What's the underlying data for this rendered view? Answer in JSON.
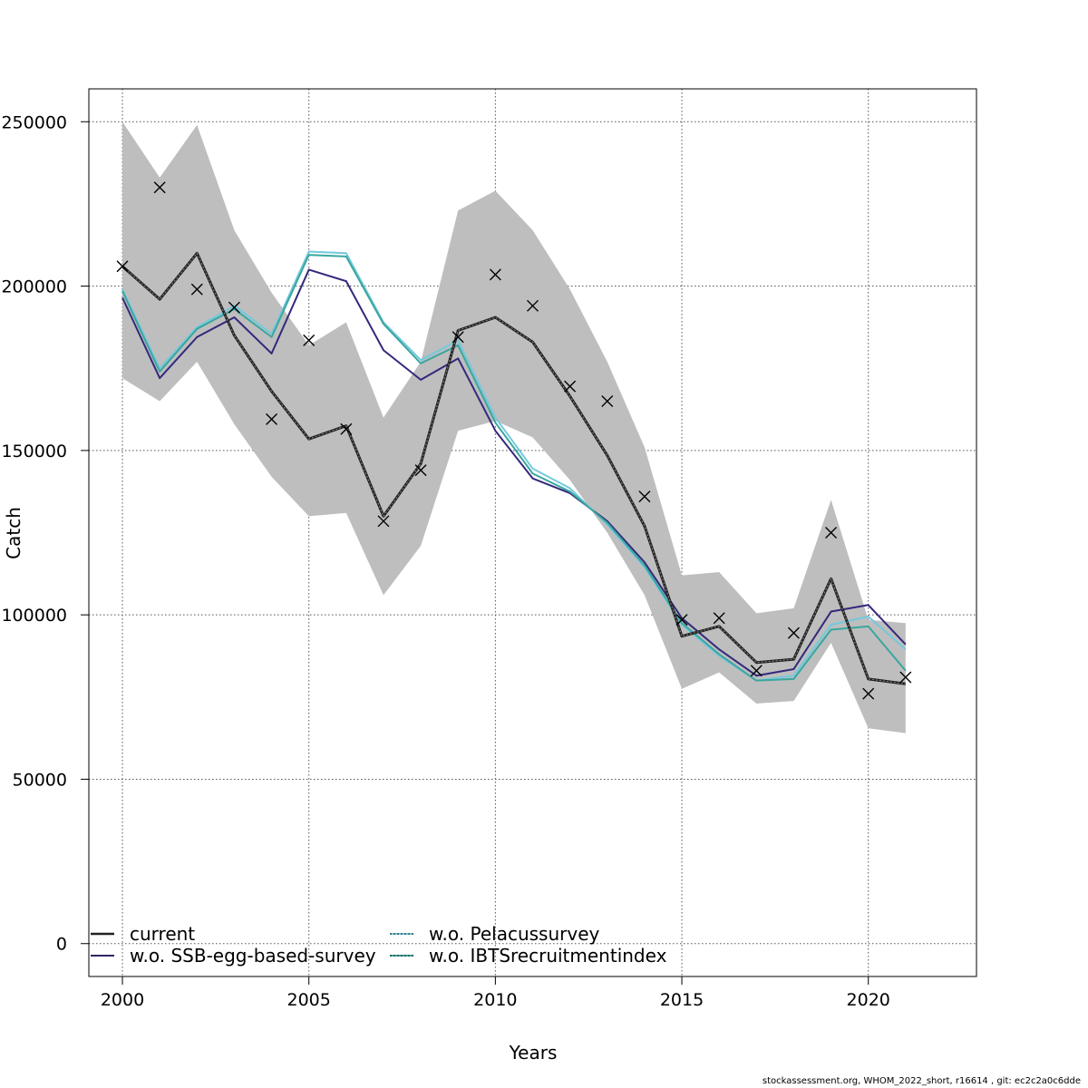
{
  "chart_data": {
    "type": "line",
    "title": "",
    "xlabel": "Years",
    "ylabel": "Catch",
    "xlim": [
      1999.1,
      2022.9
    ],
    "ylim": [
      -10000,
      260000
    ],
    "x_ticks": [
      2000,
      2005,
      2010,
      2015,
      2020
    ],
    "y_ticks": [
      0,
      50000,
      100000,
      150000,
      200000,
      250000
    ],
    "grid": true,
    "legend_position": "bottom-left",
    "x": [
      2000,
      2001,
      2002,
      2003,
      2004,
      2005,
      2006,
      2007,
      2008,
      2009,
      2010,
      2011,
      2012,
      2013,
      2014,
      2015,
      2016,
      2017,
      2018,
      2019,
      2020,
      2021
    ],
    "band": {
      "upper": [
        250000,
        233000,
        249000,
        217000,
        198000,
        182000,
        189000,
        160000,
        177000,
        223000,
        229000,
        217000,
        199000,
        177000,
        151000,
        112000,
        113000,
        100500,
        102000,
        135000,
        98500,
        97500
      ],
      "lower": [
        172000,
        165000,
        177000,
        158000,
        142000,
        130000,
        131000,
        106000,
        121000,
        156000,
        159000,
        154000,
        141000,
        125000,
        106000,
        77500,
        82500,
        73000,
        73800,
        91500,
        65500,
        64000
      ],
      "color": "#bebebe"
    },
    "observed": {
      "marker": "x",
      "values": [
        206000,
        230000,
        199000,
        193500,
        159500,
        183500,
        156500,
        128500,
        144000,
        184500,
        203500,
        194000,
        169500,
        165000,
        136000,
        98500,
        99000,
        83000,
        94500,
        125000,
        76000,
        81000
      ]
    },
    "series": [
      {
        "name": "current",
        "color": "#222222",
        "values": [
          206000,
          196000,
          210000,
          185000,
          168000,
          153500,
          157500,
          130000,
          146000,
          186500,
          190500,
          183000,
          166500,
          148500,
          127000,
          93500,
          96500,
          85500,
          86500,
          111000,
          80500,
          79000
        ]
      },
      {
        "name": "w.o. SSB-egg-based-survey",
        "color": "#33297c",
        "values": [
          196500,
          172000,
          184500,
          190500,
          179500,
          205000,
          201500,
          180500,
          171500,
          178000,
          156000,
          141500,
          137000,
          128500,
          116000,
          99000,
          89500,
          81500,
          83500,
          101000,
          103000,
          91000
        ]
      },
      {
        "name": "w.o. Pelacussurvey",
        "color": "#73c9dd",
        "values": [
          199000,
          175000,
          187500,
          194000,
          185500,
          210500,
          210000,
          189000,
          177500,
          183500,
          160000,
          144500,
          138500,
          127500,
          114500,
          97000,
          87500,
          80000,
          81500,
          97000,
          99500,
          89500
        ]
      },
      {
        "name": "w.o. IBTSrecruitmentindex",
        "color": "#3aa69e",
        "values": [
          198500,
          174000,
          187000,
          193000,
          184500,
          209500,
          209000,
          188500,
          176500,
          182000,
          158500,
          143000,
          137500,
          128000,
          115000,
          97500,
          88000,
          80000,
          80500,
          95500,
          96500,
          83000
        ]
      }
    ]
  },
  "footer": "stockassessment.org, WHOM_2022_short, r16614 , git: ec2c2a0c6dde"
}
